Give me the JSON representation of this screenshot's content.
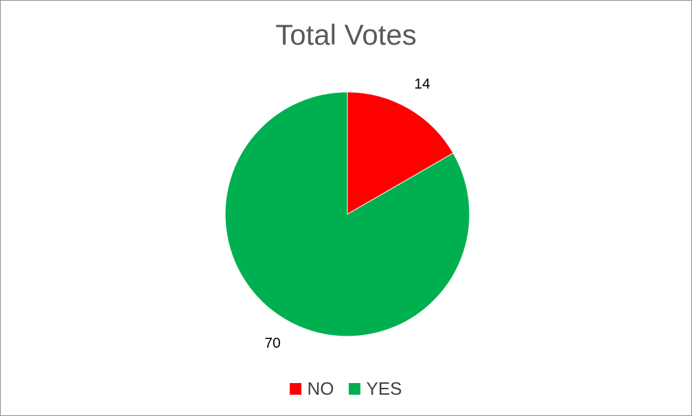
{
  "chart_data": {
    "type": "pie",
    "title": "Total Votes",
    "categories": [
      "NO",
      "YES"
    ],
    "values": [
      14,
      70
    ],
    "colors": [
      "#ff0000",
      "#00b050"
    ],
    "data_labels": [
      "14",
      "70"
    ],
    "legend_position": "bottom",
    "start_angle": "top, clockwise"
  },
  "legend": {
    "items": [
      {
        "label": "NO",
        "color": "#ff0000"
      },
      {
        "label": "YES",
        "color": "#00b050"
      }
    ]
  }
}
